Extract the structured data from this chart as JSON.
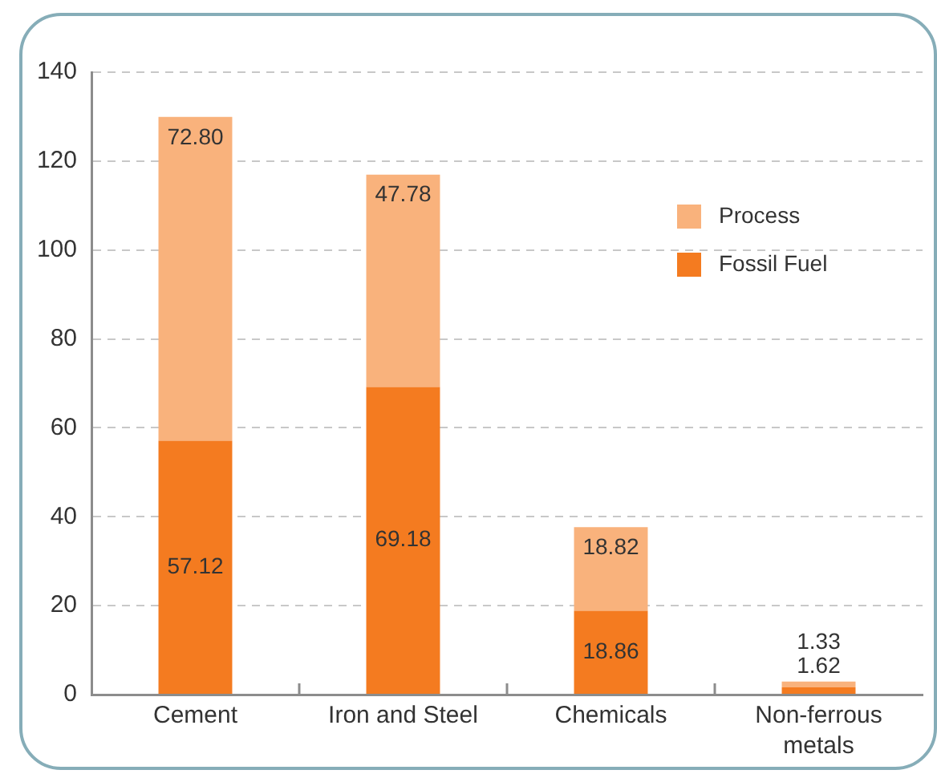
{
  "chart_data": {
    "type": "bar",
    "stacked": true,
    "categories": [
      "Cement",
      "Iron and Steel",
      "Chemicals",
      "Non-ferrous metals"
    ],
    "series": [
      {
        "name": "Fossil Fuel",
        "color": "#f47b20",
        "values": [
          57.12,
          69.18,
          18.86,
          1.62
        ],
        "value_labels": [
          "57.12",
          "69.18",
          "18.86",
          "1.62"
        ]
      },
      {
        "name": "Process",
        "color": "#f9b27c",
        "values": [
          72.8,
          47.78,
          18.82,
          1.33
        ],
        "value_labels": [
          "72.80",
          "47.78",
          "18.82",
          "1.33"
        ]
      }
    ],
    "ylim": [
      0,
      140
    ],
    "yticks": [
      0,
      20,
      40,
      60,
      80,
      100,
      120,
      140
    ],
    "grid": "y",
    "legend": "top right"
  }
}
